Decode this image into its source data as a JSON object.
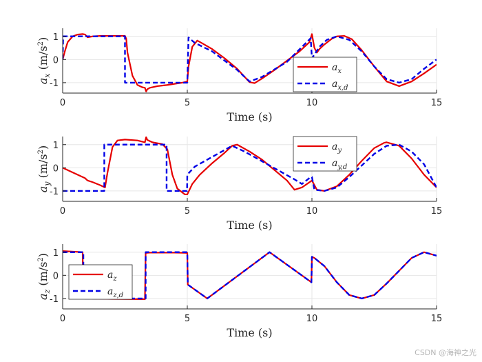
{
  "watermark": "CSDN @海神之光",
  "colors": {
    "actual": "#e60000",
    "desired": "#0000e6",
    "grid": "#e6e6e6",
    "axis": "#262626"
  },
  "chart_data": [
    {
      "type": "line",
      "xlabel": "Time (s)",
      "ylabel": "a_x (m/s^2)",
      "ylabel_parts": {
        "sym": "a",
        "sub": "x",
        "unit_open": "(m/s",
        "unit_sup": "2",
        "unit_close": ")"
      },
      "xlim": [
        0,
        15
      ],
      "ylim": [
        -1.45,
        1.35
      ],
      "xticks": [
        0,
        5,
        10,
        15
      ],
      "yticks": [
        -1,
        0,
        1
      ],
      "grid": true,
      "legend": {
        "position": "lower-right",
        "entries": [
          {
            "sym": "a",
            "sub": "x",
            "series": 0
          },
          {
            "sym": "a",
            "sub": "x,d",
            "series": 1
          }
        ]
      },
      "series": [
        {
          "name": "a_x",
          "style": "solid",
          "x": [
            0,
            0.1,
            0.2,
            0.4,
            0.6,
            0.8,
            0.9,
            1.0,
            1.2,
            1.5,
            2.0,
            2.5,
            2.55,
            2.6,
            2.8,
            3.0,
            3.2,
            3.3,
            3.35,
            3.4,
            3.5,
            3.8,
            4.2,
            4.8,
            5.0,
            5.05,
            5.2,
            5.4,
            5.6,
            6.0,
            6.5,
            7.0,
            7.5,
            7.7,
            8.0,
            8.5,
            9.0,
            9.5,
            9.9,
            10.0,
            10.1,
            10.2,
            10.3,
            10.5,
            10.8,
            11.0,
            11.3,
            11.6,
            12.0,
            12.5,
            13.0,
            13.5,
            14.0,
            14.5,
            15.0
          ],
          "y": [
            0,
            0.4,
            0.75,
            1.0,
            1.08,
            1.1,
            1.08,
            0.96,
            1.0,
            1.02,
            1.02,
            1.02,
            0.9,
            0.3,
            -0.7,
            -1.1,
            -1.2,
            -1.22,
            -1.38,
            -1.28,
            -1.22,
            -1.15,
            -1.1,
            -1.0,
            -0.95,
            -0.3,
            0.55,
            0.82,
            0.7,
            0.45,
            0.05,
            -0.4,
            -0.98,
            -1.02,
            -0.82,
            -0.45,
            -0.05,
            0.35,
            0.75,
            1.1,
            0.5,
            0.3,
            0.45,
            0.65,
            0.9,
            1.0,
            1.02,
            0.88,
            0.4,
            -0.3,
            -0.95,
            -1.15,
            -0.95,
            -0.6,
            -0.22
          ]
        },
        {
          "name": "a_x,d",
          "style": "dashed",
          "x": [
            0,
            0.02,
            2.5,
            2.5,
            4.99,
            5.0,
            5.05,
            5.3,
            6.0,
            7.0,
            7.5,
            8.0,
            9.0,
            9.95,
            10.0,
            10.3,
            10.6,
            11.0,
            11.5,
            12.0,
            12.5,
            13.0,
            13.5,
            14.0,
            14.5,
            15.0
          ],
          "y": [
            0,
            1.0,
            1.0,
            -1.0,
            -1.0,
            -1.0,
            0.95,
            0.72,
            0.35,
            -0.45,
            -0.95,
            -0.75,
            -0.1,
            0.92,
            0.05,
            0.55,
            0.85,
            1.0,
            0.85,
            0.35,
            -0.3,
            -0.85,
            -1.0,
            -0.85,
            -0.4,
            0.0
          ]
        }
      ]
    },
    {
      "type": "line",
      "xlabel": "Time (s)",
      "ylabel": "a_y (m/s^2)",
      "ylabel_parts": {
        "sym": "a",
        "sub": "y",
        "unit_open": "(m/s",
        "unit_sup": "2",
        "unit_close": ")"
      },
      "xlim": [
        0,
        15
      ],
      "ylim": [
        -1.45,
        1.35
      ],
      "xticks": [
        0,
        5,
        10,
        15
      ],
      "yticks": [
        -1,
        0,
        1
      ],
      "grid": true,
      "legend": {
        "position": "top-right",
        "entries": [
          {
            "sym": "a",
            "sub": "y",
            "series": 0
          },
          {
            "sym": "a",
            "sub": "y,d",
            "series": 1
          }
        ]
      },
      "series": [
        {
          "name": "a_y",
          "style": "solid",
          "x": [
            0,
            0.3,
            0.6,
            0.9,
            1.0,
            1.2,
            1.5,
            1.7,
            1.8,
            2.0,
            2.2,
            2.5,
            3.0,
            3.3,
            3.35,
            3.4,
            3.6,
            4.0,
            4.2,
            4.4,
            4.6,
            4.9,
            5.0,
            5.2,
            5.5,
            6.0,
            6.5,
            6.8,
            7.0,
            7.5,
            8.0,
            8.5,
            9.0,
            9.3,
            9.6,
            10.0,
            10.2,
            10.5,
            11.0,
            11.5,
            12.0,
            12.5,
            12.9,
            13.0,
            13.5,
            14.0,
            14.5,
            15.0
          ],
          "y": [
            0,
            -0.15,
            -0.3,
            -0.45,
            -0.55,
            -0.62,
            -0.75,
            -0.85,
            -0.2,
            0.9,
            1.18,
            1.22,
            1.18,
            1.1,
            1.32,
            1.2,
            1.1,
            1.02,
            0.8,
            -0.3,
            -0.9,
            -1.15,
            -1.15,
            -0.7,
            -0.3,
            0.2,
            0.65,
            0.95,
            1.0,
            0.7,
            0.35,
            -0.1,
            -0.55,
            -0.95,
            -0.85,
            -0.55,
            -0.95,
            -1.0,
            -0.8,
            -0.3,
            0.3,
            0.85,
            1.08,
            1.1,
            0.95,
            0.4,
            -0.3,
            -0.85
          ]
        },
        {
          "name": "a_y,d",
          "style": "dashed",
          "x": [
            0,
            1.67,
            1.67,
            4.17,
            4.17,
            4.99,
            5.0,
            5.3,
            5.8,
            6.3,
            6.8,
            7.3,
            7.8,
            8.3,
            8.8,
            9.3,
            9.6,
            9.95,
            10.0,
            10.1,
            10.5,
            11.0,
            11.5,
            12.0,
            12.5,
            13.0,
            13.5,
            14.0,
            14.5,
            15.0
          ],
          "y": [
            -1.0,
            -1.0,
            1.0,
            1.0,
            -1.0,
            -1.0,
            -0.3,
            0.05,
            0.35,
            0.65,
            0.95,
            0.7,
            0.4,
            0.1,
            -0.2,
            -0.5,
            -0.7,
            -0.4,
            -0.4,
            -0.95,
            -1.0,
            -0.85,
            -0.4,
            0.1,
            0.6,
            0.95,
            1.0,
            0.7,
            0.15,
            -0.85
          ]
        }
      ]
    },
    {
      "type": "line",
      "xlabel": "Time (s)",
      "ylabel": "a_z (m/s^2)",
      "ylabel_parts": {
        "sym": "a",
        "sub": "z",
        "unit_open": "(m/s",
        "unit_sup": "2",
        "unit_close": ")"
      },
      "xlim": [
        0,
        15
      ],
      "ylim": [
        -1.45,
        1.35
      ],
      "xticks": [
        0,
        5,
        10,
        15
      ],
      "yticks": [
        -1,
        0,
        1
      ],
      "grid": true,
      "legend": {
        "position": "lower-left",
        "entries": [
          {
            "sym": "a",
            "sub": "z",
            "series": 0
          },
          {
            "sym": "a",
            "sub": "z,d",
            "series": 1
          }
        ]
      },
      "series": [
        {
          "name": "a_z",
          "style": "solid",
          "x": [
            0,
            0.5,
            0.8,
            0.83,
            1.0,
            2.0,
            3.3,
            3.33,
            3.5,
            4.5,
            5.0,
            5.02,
            5.8,
            8.3,
            9.98,
            10.0,
            10.1,
            10.5,
            11.0,
            11.5,
            12.0,
            12.5,
            13.0,
            13.5,
            14.0,
            14.5,
            15.0
          ],
          "y": [
            1.05,
            1.02,
            1.0,
            -1.0,
            -1.0,
            -1.02,
            -1.03,
            0.97,
            0.98,
            0.98,
            0.97,
            -0.4,
            -1.0,
            1.0,
            -0.3,
            0.8,
            0.75,
            0.4,
            -0.3,
            -0.85,
            -1.0,
            -0.85,
            -0.35,
            0.2,
            0.75,
            1.0,
            0.85
          ]
        },
        {
          "name": "a_z,d",
          "style": "dashed",
          "x": [
            0,
            0.83,
            0.83,
            3.33,
            3.33,
            5.0,
            5.02,
            5.8,
            8.3,
            9.98,
            10.0,
            10.1,
            10.5,
            11.0,
            11.5,
            12.0,
            12.5,
            13.0,
            13.5,
            14.0,
            14.5,
            15.0
          ],
          "y": [
            1.0,
            1.0,
            -1.0,
            -1.0,
            1.0,
            1.0,
            -0.4,
            -1.0,
            1.0,
            -0.3,
            0.8,
            0.75,
            0.4,
            -0.3,
            -0.85,
            -1.0,
            -0.85,
            -0.35,
            0.2,
            0.75,
            1.0,
            0.85
          ]
        }
      ]
    }
  ]
}
